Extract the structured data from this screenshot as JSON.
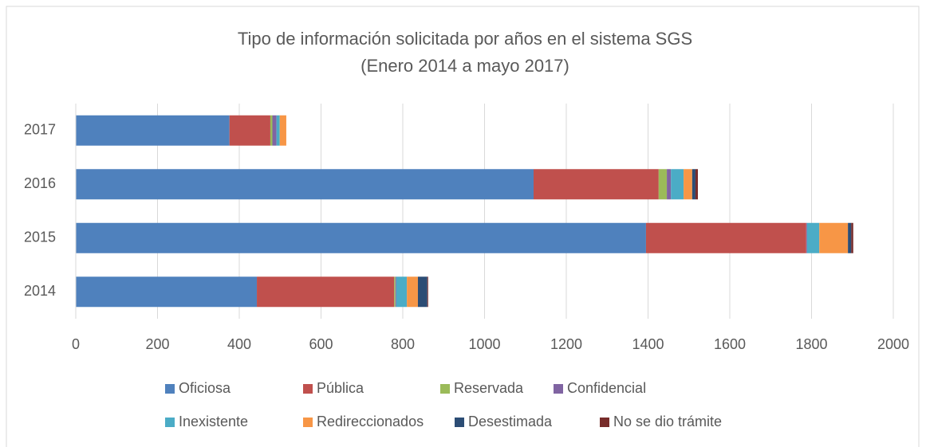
{
  "chart_data": {
    "type": "stacked-barh",
    "title": "Tipo de información solicitada por años en el sistema SGS",
    "subtitle": "(Enero 2014 a mayo 2017)",
    "categories": [
      "2014",
      "2015",
      "2016",
      "2017"
    ],
    "series": [
      {
        "name": "Oficiosa",
        "color": "#4f81bd",
        "values": [
          443,
          1395,
          1120,
          376
        ]
      },
      {
        "name": "Pública",
        "color": "#c0504d",
        "values": [
          336,
          392,
          306,
          100
        ]
      },
      {
        "name": "Reservada",
        "color": "#9bbb59",
        "values": [
          3,
          0,
          20,
          5
        ]
      },
      {
        "name": "Confidencial",
        "color": "#8064a2",
        "values": [
          2,
          2,
          10,
          10
        ]
      },
      {
        "name": "Inexistente",
        "color": "#4bacc6",
        "values": [
          26,
          30,
          31,
          8
        ]
      },
      {
        "name": "Redireccionados",
        "color": "#f79646",
        "values": [
          27,
          70,
          21,
          16
        ]
      },
      {
        "name": "Desestimada",
        "color": "#2c4d75",
        "values": [
          23,
          8,
          8,
          0
        ]
      },
      {
        "name": "No se dio trámite",
        "color": "#772c2a",
        "values": [
          2,
          5,
          6,
          0
        ]
      }
    ],
    "xlim": [
      0,
      2000
    ],
    "xticks": [
      0,
      200,
      400,
      600,
      800,
      1000,
      1200,
      1400,
      1600,
      1800,
      2000
    ],
    "grid": true,
    "legend": "bottom"
  }
}
